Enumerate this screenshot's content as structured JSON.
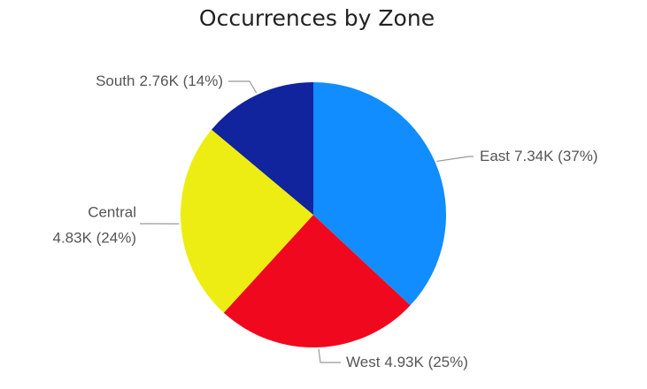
{
  "chart_data": {
    "type": "pie",
    "title": "Occurrences by Zone",
    "categories": [
      "East",
      "West",
      "Central",
      "South"
    ],
    "values": [
      7340,
      4930,
      4830,
      2760
    ],
    "value_labels": [
      "7.34K (37%)",
      "4.93K (25%)",
      "4.83K (24%)",
      "2.76K (14%)"
    ],
    "colors": [
      "#118DFF",
      "#F0081E",
      "#EDED13",
      "#12239E"
    ]
  }
}
